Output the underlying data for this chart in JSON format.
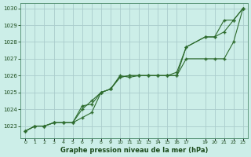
{
  "title": "Graphe pression niveau de la mer (hPa)",
  "bg_color": "#cceee8",
  "grid_color": "#aacccc",
  "line_color": "#2d6b2d",
  "xlim": [
    -0.5,
    23.5
  ],
  "ylim": [
    1022.3,
    1030.3
  ],
  "yticks": [
    1023,
    1024,
    1025,
    1026,
    1027,
    1028,
    1029,
    1030
  ],
  "xtick_positions": [
    0,
    1,
    2,
    3,
    4,
    5,
    6,
    7,
    8,
    9,
    10,
    11,
    12,
    13,
    14,
    15,
    16,
    17,
    19,
    20,
    21,
    22,
    23
  ],
  "xtick_labels": [
    "0",
    "1",
    "2",
    "3",
    "4",
    "5",
    "6",
    "7",
    "8",
    "9",
    "10",
    "11",
    "12",
    "13",
    "14",
    "15",
    "16",
    "17",
    "19",
    "20",
    "21",
    "22",
    "23"
  ],
  "series": [
    {
      "x": [
        0,
        1,
        2,
        3,
        4,
        5,
        6,
        7,
        8,
        9,
        10,
        11,
        12,
        13,
        14,
        15,
        16,
        17,
        19,
        20,
        21,
        22,
        23
      ],
      "y": [
        1022.7,
        1023.0,
        1023.0,
        1023.2,
        1023.2,
        1023.2,
        1024.2,
        1024.3,
        1025.0,
        1025.2,
        1026.0,
        1025.9,
        1026.0,
        1026.0,
        1026.0,
        1026.0,
        1026.0,
        1027.7,
        1028.3,
        1028.3,
        1029.3,
        1029.3,
        1030.0
      ]
    },
    {
      "x": [
        0,
        1,
        2,
        3,
        4,
        5,
        6,
        7,
        8,
        9,
        10,
        11,
        12,
        13,
        14,
        15,
        16,
        17,
        19,
        20,
        21,
        22,
        23
      ],
      "y": [
        1022.7,
        1023.0,
        1023.0,
        1023.2,
        1023.2,
        1023.2,
        1024.0,
        1024.5,
        1025.0,
        1025.2,
        1025.9,
        1026.0,
        1026.0,
        1026.0,
        1026.0,
        1026.0,
        1026.2,
        1027.7,
        1028.3,
        1028.3,
        1028.6,
        1029.3,
        1030.0
      ]
    },
    {
      "x": [
        0,
        1,
        2,
        3,
        4,
        5,
        6,
        7,
        8,
        9,
        10,
        11,
        12,
        13,
        14,
        15,
        16,
        17,
        19,
        20,
        21,
        22,
        23
      ],
      "y": [
        1022.7,
        1023.0,
        1023.0,
        1023.2,
        1023.2,
        1023.2,
        1023.5,
        1023.8,
        1025.0,
        1025.2,
        1025.9,
        1026.0,
        1026.0,
        1026.0,
        1026.0,
        1026.0,
        1026.0,
        1027.0,
        1027.0,
        1027.0,
        1027.0,
        1028.0,
        1030.0
      ]
    }
  ]
}
